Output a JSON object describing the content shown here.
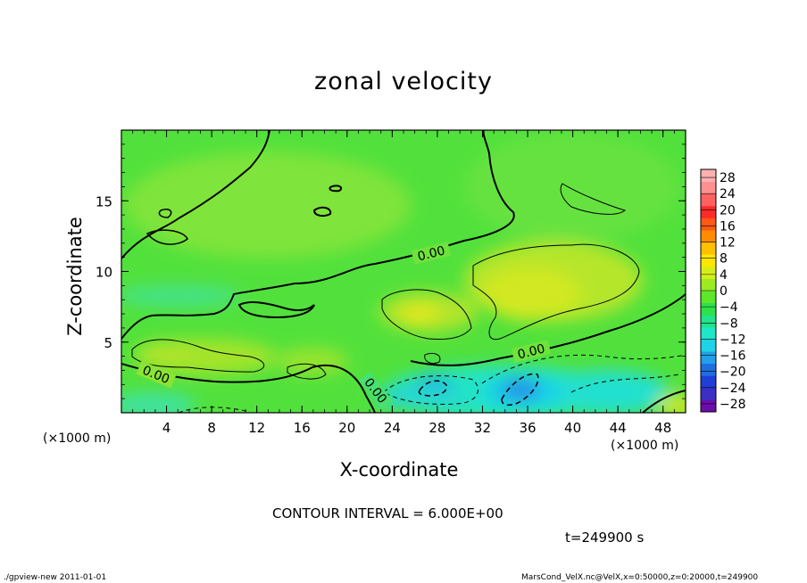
{
  "chart_data": {
    "type": "heatmap",
    "title": "zonal velocity",
    "xlabel": "X-coordinate",
    "ylabel": "Z-coordinate",
    "x_unit_left": "(×1000 m)",
    "x_unit_right": "(×1000 m)",
    "xlim": [
      0,
      50
    ],
    "ylim": [
      0,
      20
    ],
    "x_ticks": [
      4,
      8,
      12,
      16,
      20,
      24,
      28,
      32,
      36,
      40,
      44,
      48
    ],
    "y_ticks": [
      5,
      10,
      15
    ],
    "colorbar": {
      "labels": [
        28,
        24,
        20,
        16,
        12,
        8,
        4,
        0,
        -4,
        -8,
        -12,
        -16,
        -20,
        -24,
        -28
      ],
      "range": [
        -30,
        30
      ],
      "colors": [
        "#6a0dad",
        "#3b2fc4",
        "#1f3fd8",
        "#1e6ee0",
        "#20a0e8",
        "#1fd3e6",
        "#1fe6c8",
        "#22e38a",
        "#2ee04a",
        "#5ee62a",
        "#9cea22",
        "#d6ee18",
        "#ffe600",
        "#ffc000",
        "#ff8c00",
        "#ff5a14",
        "#ff2a2a",
        "#ff6060",
        "#ff9090",
        "#ffb0b0"
      ]
    },
    "contour_labels": [
      "0.00",
      "0.00",
      "0.00",
      "0.00"
    ],
    "contour_interval": "CONTOUR INTERVAL = 6.000E+00",
    "time": "t=249900 s"
  },
  "footer": {
    "left": "./gpview-new  2011-01-01",
    "right": "MarsCond_VelX.nc@VelX,x=0:50000,z=0:20000,t=249900"
  }
}
